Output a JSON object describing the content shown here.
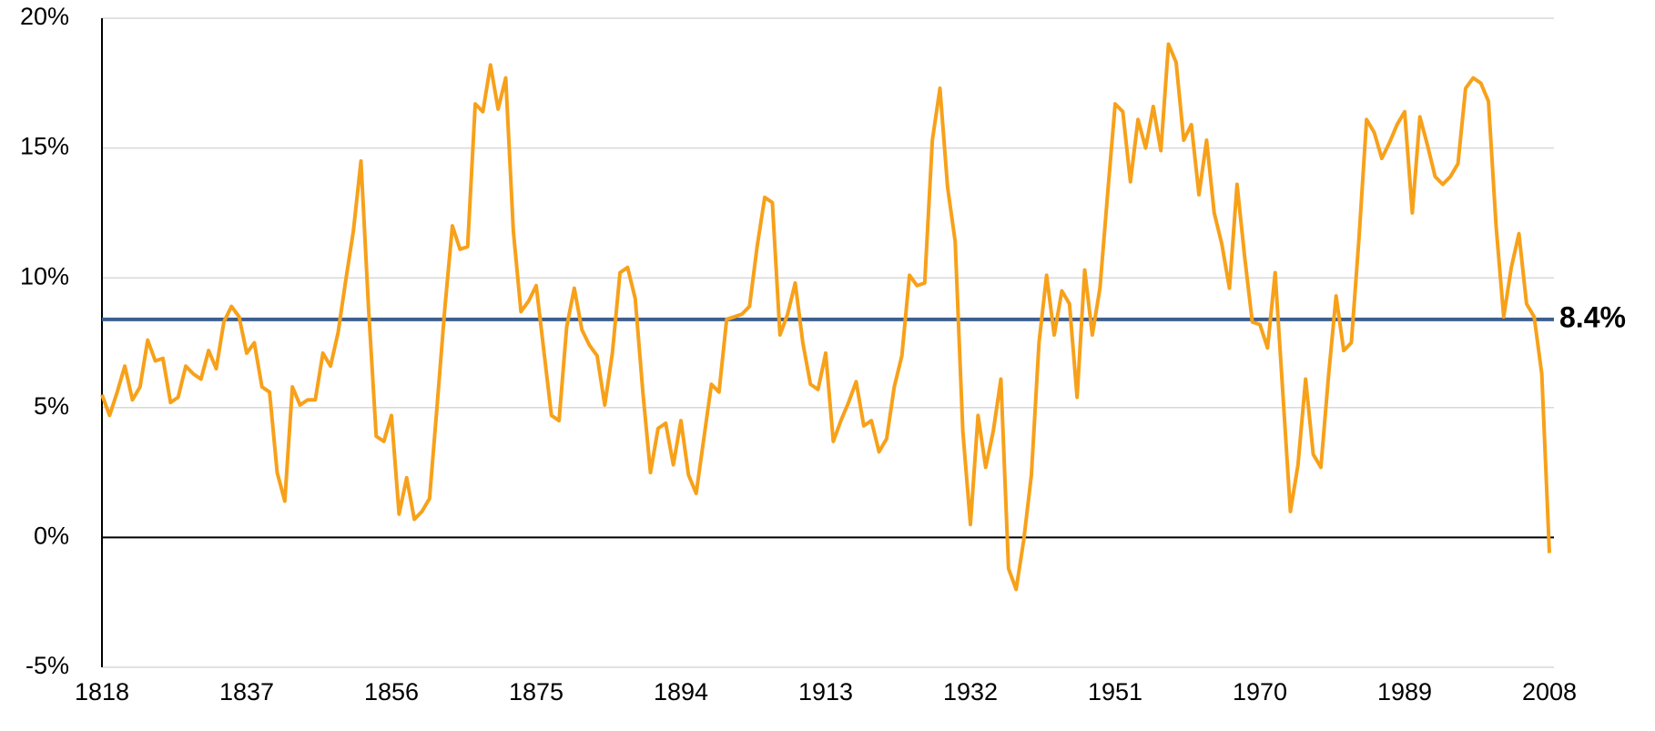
{
  "chart_data": {
    "type": "line",
    "x": [
      1818,
      1819,
      1820,
      1821,
      1822,
      1823,
      1824,
      1825,
      1826,
      1827,
      1828,
      1829,
      1830,
      1831,
      1832,
      1833,
      1834,
      1835,
      1836,
      1837,
      1838,
      1839,
      1840,
      1841,
      1842,
      1843,
      1844,
      1845,
      1846,
      1847,
      1848,
      1849,
      1850,
      1851,
      1852,
      1853,
      1854,
      1855,
      1856,
      1857,
      1858,
      1859,
      1860,
      1861,
      1862,
      1863,
      1864,
      1865,
      1866,
      1867,
      1868,
      1869,
      1870,
      1871,
      1872,
      1873,
      1874,
      1875,
      1876,
      1877,
      1878,
      1879,
      1880,
      1881,
      1882,
      1883,
      1884,
      1885,
      1886,
      1887,
      1888,
      1889,
      1890,
      1891,
      1892,
      1893,
      1894,
      1895,
      1896,
      1897,
      1898,
      1899,
      1900,
      1901,
      1902,
      1903,
      1904,
      1905,
      1906,
      1907,
      1908,
      1909,
      1910,
      1911,
      1912,
      1913,
      1914,
      1915,
      1916,
      1917,
      1918,
      1919,
      1920,
      1921,
      1922,
      1923,
      1924,
      1925,
      1926,
      1927,
      1928,
      1929,
      1930,
      1931,
      1932,
      1933,
      1934,
      1935,
      1936,
      1937,
      1938,
      1939,
      1940,
      1941,
      1942,
      1943,
      1944,
      1945,
      1946,
      1947,
      1948,
      1949,
      1950,
      1951,
      1952,
      1953,
      1954,
      1955,
      1956,
      1957,
      1958,
      1959,
      1960,
      1961,
      1962,
      1963,
      1964,
      1965,
      1966,
      1967,
      1968,
      1969,
      1970,
      1971,
      1972,
      1973,
      1974,
      1975,
      1976,
      1977,
      1978,
      1979,
      1980,
      1981,
      1982,
      1983,
      1984,
      1985,
      1986,
      1987,
      1988,
      1989,
      1990,
      1991,
      1992,
      1993,
      1994,
      1995,
      1996,
      1997,
      1998,
      1999,
      2000,
      2001,
      2002,
      2003,
      2004,
      2005,
      2006,
      2007,
      2008
    ],
    "series": [
      {
        "color": "#f7a11a",
        "values": [
          5.5,
          4.7,
          5.6,
          6.6,
          5.3,
          5.8,
          7.6,
          6.8,
          6.9,
          5.2,
          5.4,
          6.6,
          6.3,
          6.1,
          7.2,
          6.5,
          8.3,
          8.9,
          8.5,
          7.1,
          7.5,
          5.8,
          5.6,
          2.5,
          1.4,
          5.8,
          5.1,
          5.3,
          5.3,
          7.1,
          6.6,
          7.9,
          9.9,
          11.8,
          14.5,
          8.8,
          3.9,
          3.7,
          4.7,
          0.9,
          2.3,
          0.7,
          1.0,
          1.5,
          5.1,
          8.8,
          12.0,
          11.1,
          11.2,
          16.7,
          16.4,
          18.2,
          16.5,
          17.7,
          11.8,
          8.7,
          9.1,
          9.7,
          7.2,
          4.7,
          4.5,
          8.1,
          9.6,
          8.0,
          7.4,
          7.0,
          5.1,
          7.1,
          10.2,
          10.4,
          9.2,
          5.6,
          2.5,
          4.2,
          4.4,
          2.8,
          4.5,
          2.4,
          1.7,
          3.8,
          5.9,
          5.6,
          8.4,
          8.5,
          8.6,
          8.9,
          11.2,
          13.1,
          12.9,
          7.8,
          8.6,
          9.8,
          7.5,
          5.9,
          5.7,
          7.1,
          3.7,
          4.5,
          5.2,
          6.0,
          4.3,
          4.5,
          3.3,
          3.8,
          5.8,
          7.0,
          10.1,
          9.7,
          9.8,
          15.3,
          17.3,
          13.5,
          11.4,
          4.1,
          0.5,
          4.7,
          2.7,
          4.1,
          6.1,
          -1.2,
          -2.0,
          -0.1,
          2.4,
          7.5,
          10.1,
          7.8,
          9.5,
          9.0,
          5.4,
          10.3,
          7.8,
          9.6,
          13.2,
          16.7,
          16.4,
          13.7,
          16.1,
          15.0,
          16.6,
          14.9,
          19.0,
          18.3,
          15.3,
          15.9,
          13.2,
          15.3,
          12.5,
          11.3,
          9.6,
          13.6,
          10.8,
          8.3,
          8.2,
          7.3,
          10.2,
          5.6,
          1.0,
          2.8,
          6.1,
          3.2,
          2.7,
          6.2,
          9.3,
          7.2,
          7.5,
          11.5,
          16.1,
          15.6,
          14.6,
          15.2,
          15.9,
          16.4,
          12.5,
          16.2,
          15.1,
          13.9,
          13.6,
          13.9,
          14.4,
          17.3,
          17.7,
          17.5,
          16.8,
          12.0,
          8.5,
          10.4,
          11.7,
          9.0,
          8.5,
          6.3,
          -0.6
        ]
      }
    ],
    "reference_line": {
      "value": 8.4,
      "label": "8.4%",
      "color": "#3d5f8e"
    },
    "xlim": [
      1818,
      2008
    ],
    "xticks": [
      1818,
      1837,
      1856,
      1875,
      1894,
      1913,
      1932,
      1951,
      1970,
      1989,
      2008
    ],
    "ylim": [
      -5,
      20
    ],
    "yticks": [
      {
        "value": -5,
        "label": "-5%"
      },
      {
        "value": 0,
        "label": "0%"
      },
      {
        "value": 5,
        "label": "5%"
      },
      {
        "value": 10,
        "label": "10%"
      },
      {
        "value": 15,
        "label": "15%"
      },
      {
        "value": 20,
        "label": "20%"
      }
    ],
    "grid": true
  }
}
